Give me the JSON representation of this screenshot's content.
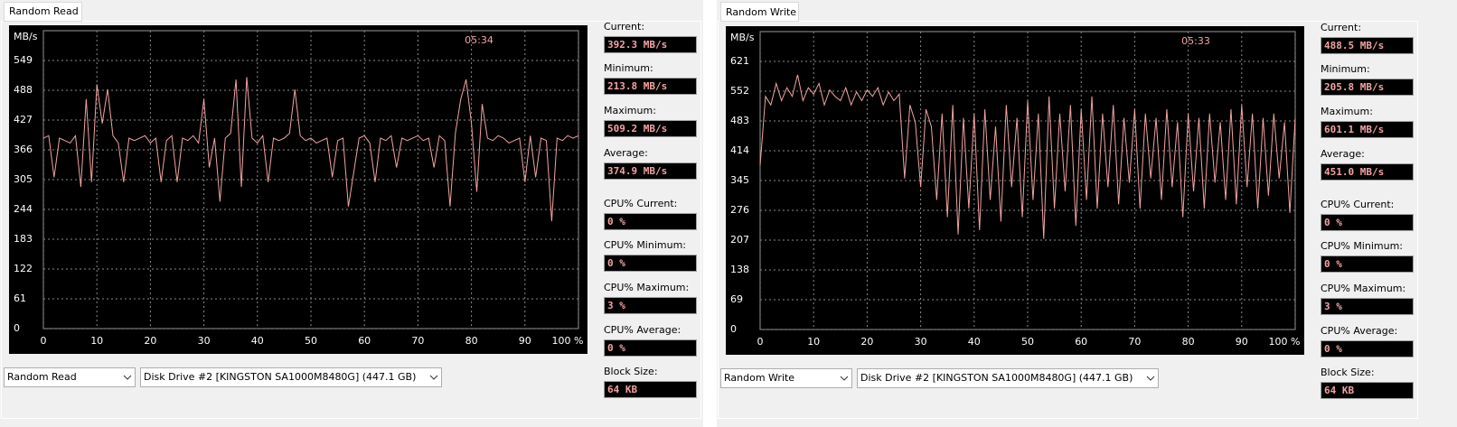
{
  "panels": [
    {
      "tab": "Random Read",
      "stats": [
        {
          "label": "Current:",
          "value": "392.3 MB/s"
        },
        {
          "label": "Minimum:",
          "value": "213.8 MB/s"
        },
        {
          "label": "Maximum:",
          "value": "509.2 MB/s"
        },
        {
          "label": "Average:",
          "value": "374.9 MB/s"
        },
        {
          "label": "CPU% Current:",
          "value": "0 %"
        },
        {
          "label": "CPU% Minimum:",
          "value": "0 %"
        },
        {
          "label": "CPU% Maximum:",
          "value": "3 %"
        },
        {
          "label": "CPU% Average:",
          "value": "0 %"
        },
        {
          "label": "Block Size:",
          "value": "64 KB"
        }
      ],
      "test_select": "Random Read",
      "drive_select": "Disk Drive #2  [KINGSTON SA1000M8480G]  (447.1 GB)"
    },
    {
      "tab": "Random Write",
      "stats": [
        {
          "label": "Current:",
          "value": "488.5 MB/s"
        },
        {
          "label": "Minimum:",
          "value": "205.8 MB/s"
        },
        {
          "label": "Maximum:",
          "value": "601.1 MB/s"
        },
        {
          "label": "Average:",
          "value": "451.0 MB/s"
        },
        {
          "label": "CPU% Current:",
          "value": "0 %"
        },
        {
          "label": "CPU% Minimum:",
          "value": "0 %"
        },
        {
          "label": "CPU% Maximum:",
          "value": "3 %"
        },
        {
          "label": "CPU% Average:",
          "value": "0 %"
        },
        {
          "label": "Block Size:",
          "value": "64 KB"
        }
      ],
      "test_select": "Random Write",
      "drive_select": "Disk Drive #2  [KINGSTON SA1000M8480G]  (447.1 GB)"
    }
  ],
  "chart_data": [
    {
      "type": "line",
      "y_label": "MB/s",
      "timer": "05:34",
      "color": "#f2a3a3",
      "grid": true,
      "x": [
        0,
        1,
        2,
        3,
        4,
        5,
        6,
        7,
        8,
        9,
        10,
        11,
        12,
        13,
        14,
        15,
        16,
        17,
        18,
        19,
        20,
        21,
        22,
        23,
        24,
        25,
        26,
        27,
        28,
        29,
        30,
        31,
        32,
        33,
        34,
        35,
        36,
        37,
        38,
        39,
        40,
        41,
        42,
        43,
        44,
        45,
        46,
        47,
        48,
        49,
        50,
        51,
        52,
        53,
        54,
        55,
        56,
        57,
        58,
        59,
        60,
        61,
        62,
        63,
        64,
        65,
        66,
        67,
        68,
        69,
        70,
        71,
        72,
        73,
        74,
        75,
        76,
        77,
        78,
        79,
        80,
        81,
        82,
        83,
        84,
        85,
        86,
        87,
        88,
        89,
        90,
        91,
        92,
        93,
        94,
        95,
        96,
        97,
        98,
        99,
        100
      ],
      "values": [
        390,
        395,
        310,
        390,
        385,
        380,
        395,
        290,
        470,
        300,
        500,
        420,
        490,
        395,
        380,
        300,
        390,
        385,
        390,
        395,
        380,
        390,
        300,
        385,
        395,
        300,
        390,
        385,
        395,
        380,
        470,
        330,
        390,
        260,
        390,
        400,
        510,
        290,
        515,
        390,
        380,
        395,
        300,
        390,
        385,
        390,
        400,
        490,
        395,
        385,
        390,
        380,
        385,
        390,
        310,
        385,
        390,
        250,
        320,
        390,
        395,
        380,
        300,
        390,
        385,
        395,
        330,
        390,
        385,
        390,
        395,
        385,
        390,
        330,
        395,
        385,
        250,
        400,
        470,
        510,
        420,
        280,
        460,
        390,
        385,
        395,
        390,
        380,
        385,
        390,
        300,
        395,
        310,
        390,
        385,
        220,
        390,
        385,
        395,
        390,
        395
      ],
      "xlim": [
        0,
        100
      ],
      "xticks": [
        0,
        10,
        20,
        30,
        40,
        50,
        60,
        70,
        80,
        90,
        {
          "value": 100,
          "label": "100 %"
        }
      ],
      "ylim": [
        0,
        610
      ],
      "yticks": [
        0,
        61,
        122,
        183,
        244,
        305,
        366,
        427,
        488,
        549
      ]
    },
    {
      "type": "line",
      "y_label": "MB/s",
      "timer": "05:33",
      "color": "#f2a3a3",
      "grid": true,
      "x": [
        0,
        1,
        2,
        3,
        4,
        5,
        6,
        7,
        8,
        9,
        10,
        11,
        12,
        13,
        14,
        15,
        16,
        17,
        18,
        19,
        20,
        21,
        22,
        23,
        24,
        25,
        26,
        27,
        28,
        29,
        30,
        31,
        32,
        33,
        34,
        35,
        36,
        37,
        38,
        39,
        40,
        41,
        42,
        43,
        44,
        45,
        46,
        47,
        48,
        49,
        50,
        51,
        52,
        53,
        54,
        55,
        56,
        57,
        58,
        59,
        60,
        61,
        62,
        63,
        64,
        65,
        66,
        67,
        68,
        69,
        70,
        71,
        72,
        73,
        74,
        75,
        76,
        77,
        78,
        79,
        80,
        81,
        82,
        83,
        84,
        85,
        86,
        87,
        88,
        89,
        90,
        91,
        92,
        93,
        94,
        95,
        96,
        97,
        98,
        99,
        100
      ],
      "values": [
        380,
        540,
        520,
        570,
        530,
        560,
        540,
        590,
        530,
        560,
        545,
        570,
        520,
        555,
        540,
        530,
        560,
        520,
        550,
        530,
        555,
        540,
        560,
        520,
        550,
        530,
        545,
        350,
        520,
        480,
        330,
        510,
        470,
        300,
        500,
        260,
        520,
        220,
        490,
        280,
        500,
        230,
        510,
        300,
        470,
        250,
        520,
        330,
        490,
        260,
        530,
        300,
        500,
        210,
        540,
        280,
        500,
        320,
        520,
        240,
        510,
        300,
        540,
        280,
        500,
        330,
        520,
        290,
        490,
        340,
        510,
        280,
        500,
        350,
        490,
        300,
        510,
        330,
        480,
        260,
        500,
        320,
        490,
        280,
        500,
        340,
        480,
        300,
        510,
        290,
        520,
        330,
        500,
        280,
        490,
        310,
        500,
        350,
        480,
        270,
        490
      ],
      "xlim": [
        0,
        100
      ],
      "xticks": [
        0,
        10,
        20,
        30,
        40,
        50,
        60,
        70,
        80,
        90,
        {
          "value": 100,
          "label": "100 %"
        }
      ],
      "ylim": [
        0,
        690
      ],
      "yticks": [
        0,
        69,
        138,
        207,
        276,
        345,
        414,
        483,
        552,
        621
      ]
    }
  ]
}
